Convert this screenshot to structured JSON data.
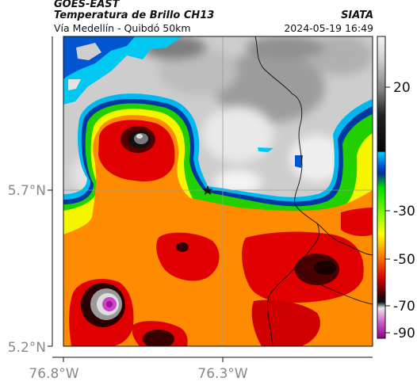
{
  "header": {
    "satellite": "GOES-EAST",
    "product": "Temperatura de Brillo CH13",
    "location": "Vía Medellín - Quibdó 50km",
    "source": "SIATA",
    "datetime": "2024-05-19 16:49"
  },
  "axes": {
    "lat_ticks": [
      "5.7°N",
      "5.2°N"
    ],
    "lon_ticks": [
      "76.8°W",
      "76.3°W"
    ]
  },
  "colorbar": {
    "ticks": [
      "20",
      "-30",
      "-50",
      "-70",
      "-90"
    ],
    "stops": [
      {
        "value": 31,
        "color": "#f2f2f2"
      },
      {
        "value": 20,
        "color": "#c8c8c8"
      },
      {
        "value": 10,
        "color": "#8a8a8a"
      },
      {
        "value": 2,
        "color": "#333333"
      },
      {
        "value": -20,
        "color": "#0a0a0a"
      },
      {
        "value": -21,
        "color": "#00ccff"
      },
      {
        "value": -28,
        "color": "#0040c0"
      },
      {
        "value": -30,
        "color": "#003399"
      },
      {
        "value": -36,
        "color": "#00e600"
      },
      {
        "value": -50,
        "color": "#ffff00"
      },
      {
        "value": -62,
        "color": "#ff3300"
      },
      {
        "value": -70,
        "color": "#cc0000"
      },
      {
        "value": -76,
        "color": "#1a0000"
      },
      {
        "value": -80,
        "color": "#dddddd"
      },
      {
        "value": -85,
        "color": "#cc44cc"
      },
      {
        "value": -92,
        "color": "#990099"
      }
    ]
  },
  "colors": {
    "cloud_gray": "#c9c9c9",
    "clear_cyan": "#00c8f0",
    "cold_red": "#e00000",
    "mid_yellow": "#f5f500",
    "warm_green": "#33dd00"
  }
}
